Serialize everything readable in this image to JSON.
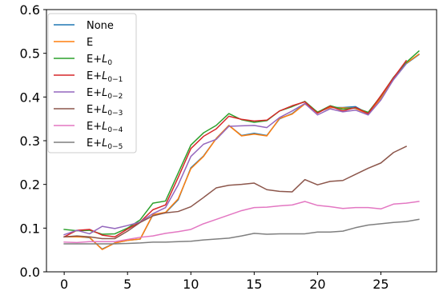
{
  "chart_data": {
    "type": "line",
    "title": "",
    "xlabel": "",
    "ylabel": "",
    "xlim": [
      -1.4,
      29.4
    ],
    "ylim": [
      0.0,
      0.6
    ],
    "x_ticks": [
      0,
      5,
      10,
      15,
      20,
      25
    ],
    "y_ticks": [
      0.0,
      0.1,
      0.2,
      0.3,
      0.4,
      0.5,
      0.6
    ],
    "y_tick_labels": [
      "0.0",
      "0.1",
      "0.2",
      "0.3",
      "0.4",
      "0.5",
      "0.6"
    ],
    "grid": false,
    "legend_position": "upper-left",
    "series": [
      {
        "name": "None",
        "color": "#1f77b4",
        "x": [
          0,
          1,
          2,
          3,
          4,
          5,
          6,
          7,
          8,
          9,
          10,
          11,
          12,
          13,
          14,
          15,
          16,
          17,
          18,
          19,
          20,
          21,
          22,
          23,
          24,
          25,
          26,
          27,
          28
        ],
        "y": [
          0.08,
          0.081,
          0.078,
          0.052,
          0.066,
          0.072,
          0.075,
          0.13,
          0.135,
          0.165,
          0.238,
          0.265,
          0.305,
          0.335,
          0.312,
          0.317,
          0.312,
          0.35,
          0.362,
          0.385,
          0.365,
          0.376,
          0.376,
          0.378,
          0.362,
          0.398,
          0.44,
          0.476,
          0.497
        ]
      },
      {
        "name": "E",
        "color": "#ff7f0e",
        "x": [
          0,
          1,
          2,
          3,
          4,
          5,
          6,
          7,
          8,
          9,
          10,
          11,
          12,
          13,
          14,
          15,
          16,
          17,
          18,
          19,
          20,
          21,
          22,
          23,
          24,
          25,
          26,
          27,
          28
        ],
        "y": [
          0.08,
          0.08,
          0.079,
          0.051,
          0.066,
          0.072,
          0.075,
          0.131,
          0.136,
          0.167,
          0.236,
          0.264,
          0.305,
          0.335,
          0.311,
          0.315,
          0.311,
          0.351,
          0.361,
          0.384,
          0.366,
          0.376,
          0.375,
          0.374,
          0.361,
          0.397,
          0.441,
          0.477,
          0.498
        ]
      },
      {
        "name": "E+L_0",
        "label_base": "E+",
        "label_var": "L",
        "label_sub": "0",
        "color": "#2ca02c",
        "x": [
          0,
          1,
          2,
          3,
          4,
          5,
          6,
          7,
          8,
          9,
          10,
          11,
          12,
          13,
          14,
          15,
          16,
          17,
          18,
          19,
          20,
          21,
          22,
          23,
          24,
          25,
          26,
          27,
          28
        ],
        "y": [
          0.097,
          0.094,
          0.095,
          0.086,
          0.087,
          0.1,
          0.119,
          0.157,
          0.162,
          0.226,
          0.29,
          0.318,
          0.335,
          0.362,
          0.348,
          0.342,
          0.346,
          0.368,
          0.378,
          0.39,
          0.365,
          0.38,
          0.372,
          0.375,
          0.365,
          0.402,
          0.445,
          0.479,
          0.505
        ]
      },
      {
        "name": "E+L_0-1",
        "label_base": "E+",
        "label_var": "L",
        "label_sub": "0−1",
        "color": "#d62728",
        "x": [
          0,
          1,
          2,
          3,
          4,
          5,
          6,
          7,
          8,
          9,
          10,
          11,
          12,
          13,
          14,
          15,
          16,
          17,
          18,
          19,
          20,
          21,
          22,
          23,
          24,
          25,
          26,
          27
        ],
        "y": [
          0.08,
          0.095,
          0.097,
          0.084,
          0.08,
          0.098,
          0.114,
          0.142,
          0.153,
          0.216,
          0.282,
          0.31,
          0.327,
          0.356,
          0.349,
          0.345,
          0.347,
          0.368,
          0.38,
          0.389,
          0.363,
          0.379,
          0.368,
          0.376,
          0.362,
          0.403,
          0.444,
          0.483
        ]
      },
      {
        "name": "E+L_0-2",
        "label_base": "E+",
        "label_var": "L",
        "label_sub": "0−2",
        "color": "#9467bd",
        "x": [
          0,
          1,
          2,
          3,
          4,
          5,
          6,
          7,
          8,
          9,
          10,
          11,
          12,
          13,
          14,
          15,
          16,
          17,
          18,
          19,
          20,
          21,
          22,
          23,
          24,
          25,
          26,
          27
        ],
        "y": [
          0.085,
          0.095,
          0.087,
          0.104,
          0.099,
          0.106,
          0.114,
          0.133,
          0.147,
          0.199,
          0.264,
          0.292,
          0.303,
          0.333,
          0.334,
          0.335,
          0.33,
          0.353,
          0.368,
          0.385,
          0.359,
          0.373,
          0.366,
          0.37,
          0.359,
          0.393,
          0.44,
          0.476
        ]
      },
      {
        "name": "E+L_0-3",
        "label_base": "E+",
        "label_var": "L",
        "label_sub": "0−3",
        "color": "#8c564b",
        "x": [
          0,
          1,
          2,
          3,
          4,
          5,
          6,
          7,
          8,
          9,
          10,
          11,
          12,
          13,
          14,
          15,
          16,
          17,
          18,
          19,
          20,
          21,
          22,
          23,
          24,
          25,
          26,
          27
        ],
        "y": [
          0.08,
          0.082,
          0.08,
          0.076,
          0.076,
          0.093,
          0.113,
          0.128,
          0.135,
          0.138,
          0.149,
          0.17,
          0.192,
          0.198,
          0.2,
          0.203,
          0.188,
          0.184,
          0.183,
          0.211,
          0.199,
          0.207,
          0.209,
          0.223,
          0.237,
          0.249,
          0.273,
          0.287
        ]
      },
      {
        "name": "E+L_0-4",
        "label_base": "E+",
        "label_var": "L",
        "label_sub": "0−4",
        "color": "#e377c2",
        "x": [
          0,
          1,
          2,
          3,
          4,
          5,
          6,
          7,
          8,
          9,
          10,
          11,
          12,
          13,
          14,
          15,
          16,
          17,
          18,
          19,
          20,
          21,
          22,
          23,
          24,
          25,
          26,
          27,
          28
        ],
        "y": [
          0.068,
          0.067,
          0.069,
          0.069,
          0.069,
          0.074,
          0.079,
          0.082,
          0.088,
          0.092,
          0.097,
          0.11,
          0.12,
          0.13,
          0.14,
          0.147,
          0.148,
          0.151,
          0.153,
          0.161,
          0.152,
          0.149,
          0.145,
          0.147,
          0.147,
          0.144,
          0.155,
          0.157,
          0.161
        ]
      },
      {
        "name": "E+L_0-5",
        "label_base": "E+",
        "label_var": "L",
        "label_sub": "0−5",
        "color": "#7f7f7f",
        "x": [
          0,
          1,
          2,
          3,
          4,
          5,
          6,
          7,
          8,
          9,
          10,
          11,
          12,
          13,
          14,
          15,
          16,
          17,
          18,
          19,
          20,
          21,
          22,
          23,
          24,
          25,
          26,
          27,
          28
        ],
        "y": [
          0.064,
          0.064,
          0.064,
          0.064,
          0.064,
          0.065,
          0.066,
          0.068,
          0.068,
          0.069,
          0.07,
          0.073,
          0.075,
          0.077,
          0.082,
          0.088,
          0.086,
          0.087,
          0.087,
          0.087,
          0.091,
          0.091,
          0.093,
          0.101,
          0.107,
          0.11,
          0.113,
          0.115,
          0.12
        ]
      }
    ]
  }
}
